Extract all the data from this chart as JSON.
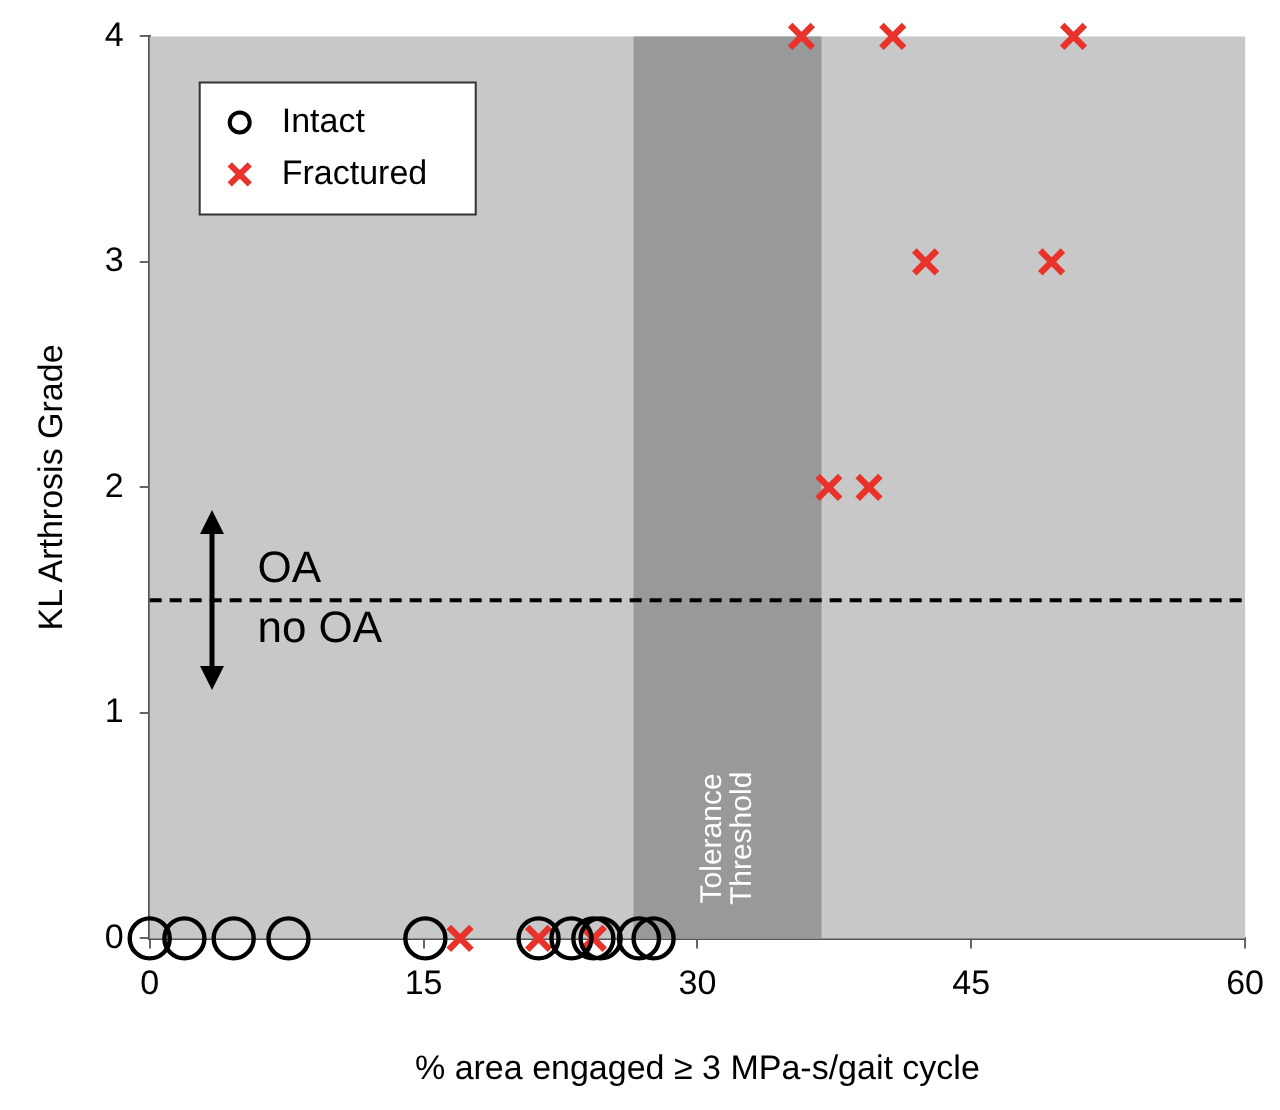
{
  "chart_data": {
    "type": "scatter",
    "xlabel": "% area engaged ≥ 3 MPa-s/gait cycle",
    "ylabel": "KL Arthrosis Grade",
    "xlim": [
      0,
      60
    ],
    "xticks": [
      0,
      15,
      30,
      45,
      60
    ],
    "ylim": [
      0,
      4
    ],
    "yticks": [
      0,
      1,
      2,
      3,
      4
    ],
    "grid": false,
    "legend": "top left",
    "series": [
      {
        "name": "Intact",
        "color": "#000000",
        "marker": "circle",
        "x": [
          0,
          1.9,
          4.6,
          7.6,
          15.1,
          21.3,
          23.1,
          24.3,
          24.7,
          26.8,
          27.6
        ],
        "values": [
          0,
          0,
          0,
          0,
          0,
          0,
          0,
          0,
          0,
          0,
          0
        ]
      },
      {
        "name": "Fractured",
        "color": "#e8322a",
        "marker": "cross",
        "x": [
          17.0,
          21.3,
          24.3,
          37.2,
          39.4,
          42.5,
          49.4,
          35.7,
          40.7,
          50.6
        ],
        "values": [
          0,
          0,
          0,
          2,
          2,
          3,
          3,
          4,
          4,
          4
        ]
      }
    ],
    "ref_lines": [
      {
        "axis": "y",
        "value": 1.5,
        "label": null,
        "line_style": "dashed",
        "color": "#000000"
      }
    ],
    "bands": [
      {
        "axis": "x",
        "from": 26.5,
        "to": 36.8,
        "label": "Tolerance Threshold",
        "color": "#999999"
      }
    ],
    "annotations": [
      "OA",
      "no OA"
    ]
  }
}
